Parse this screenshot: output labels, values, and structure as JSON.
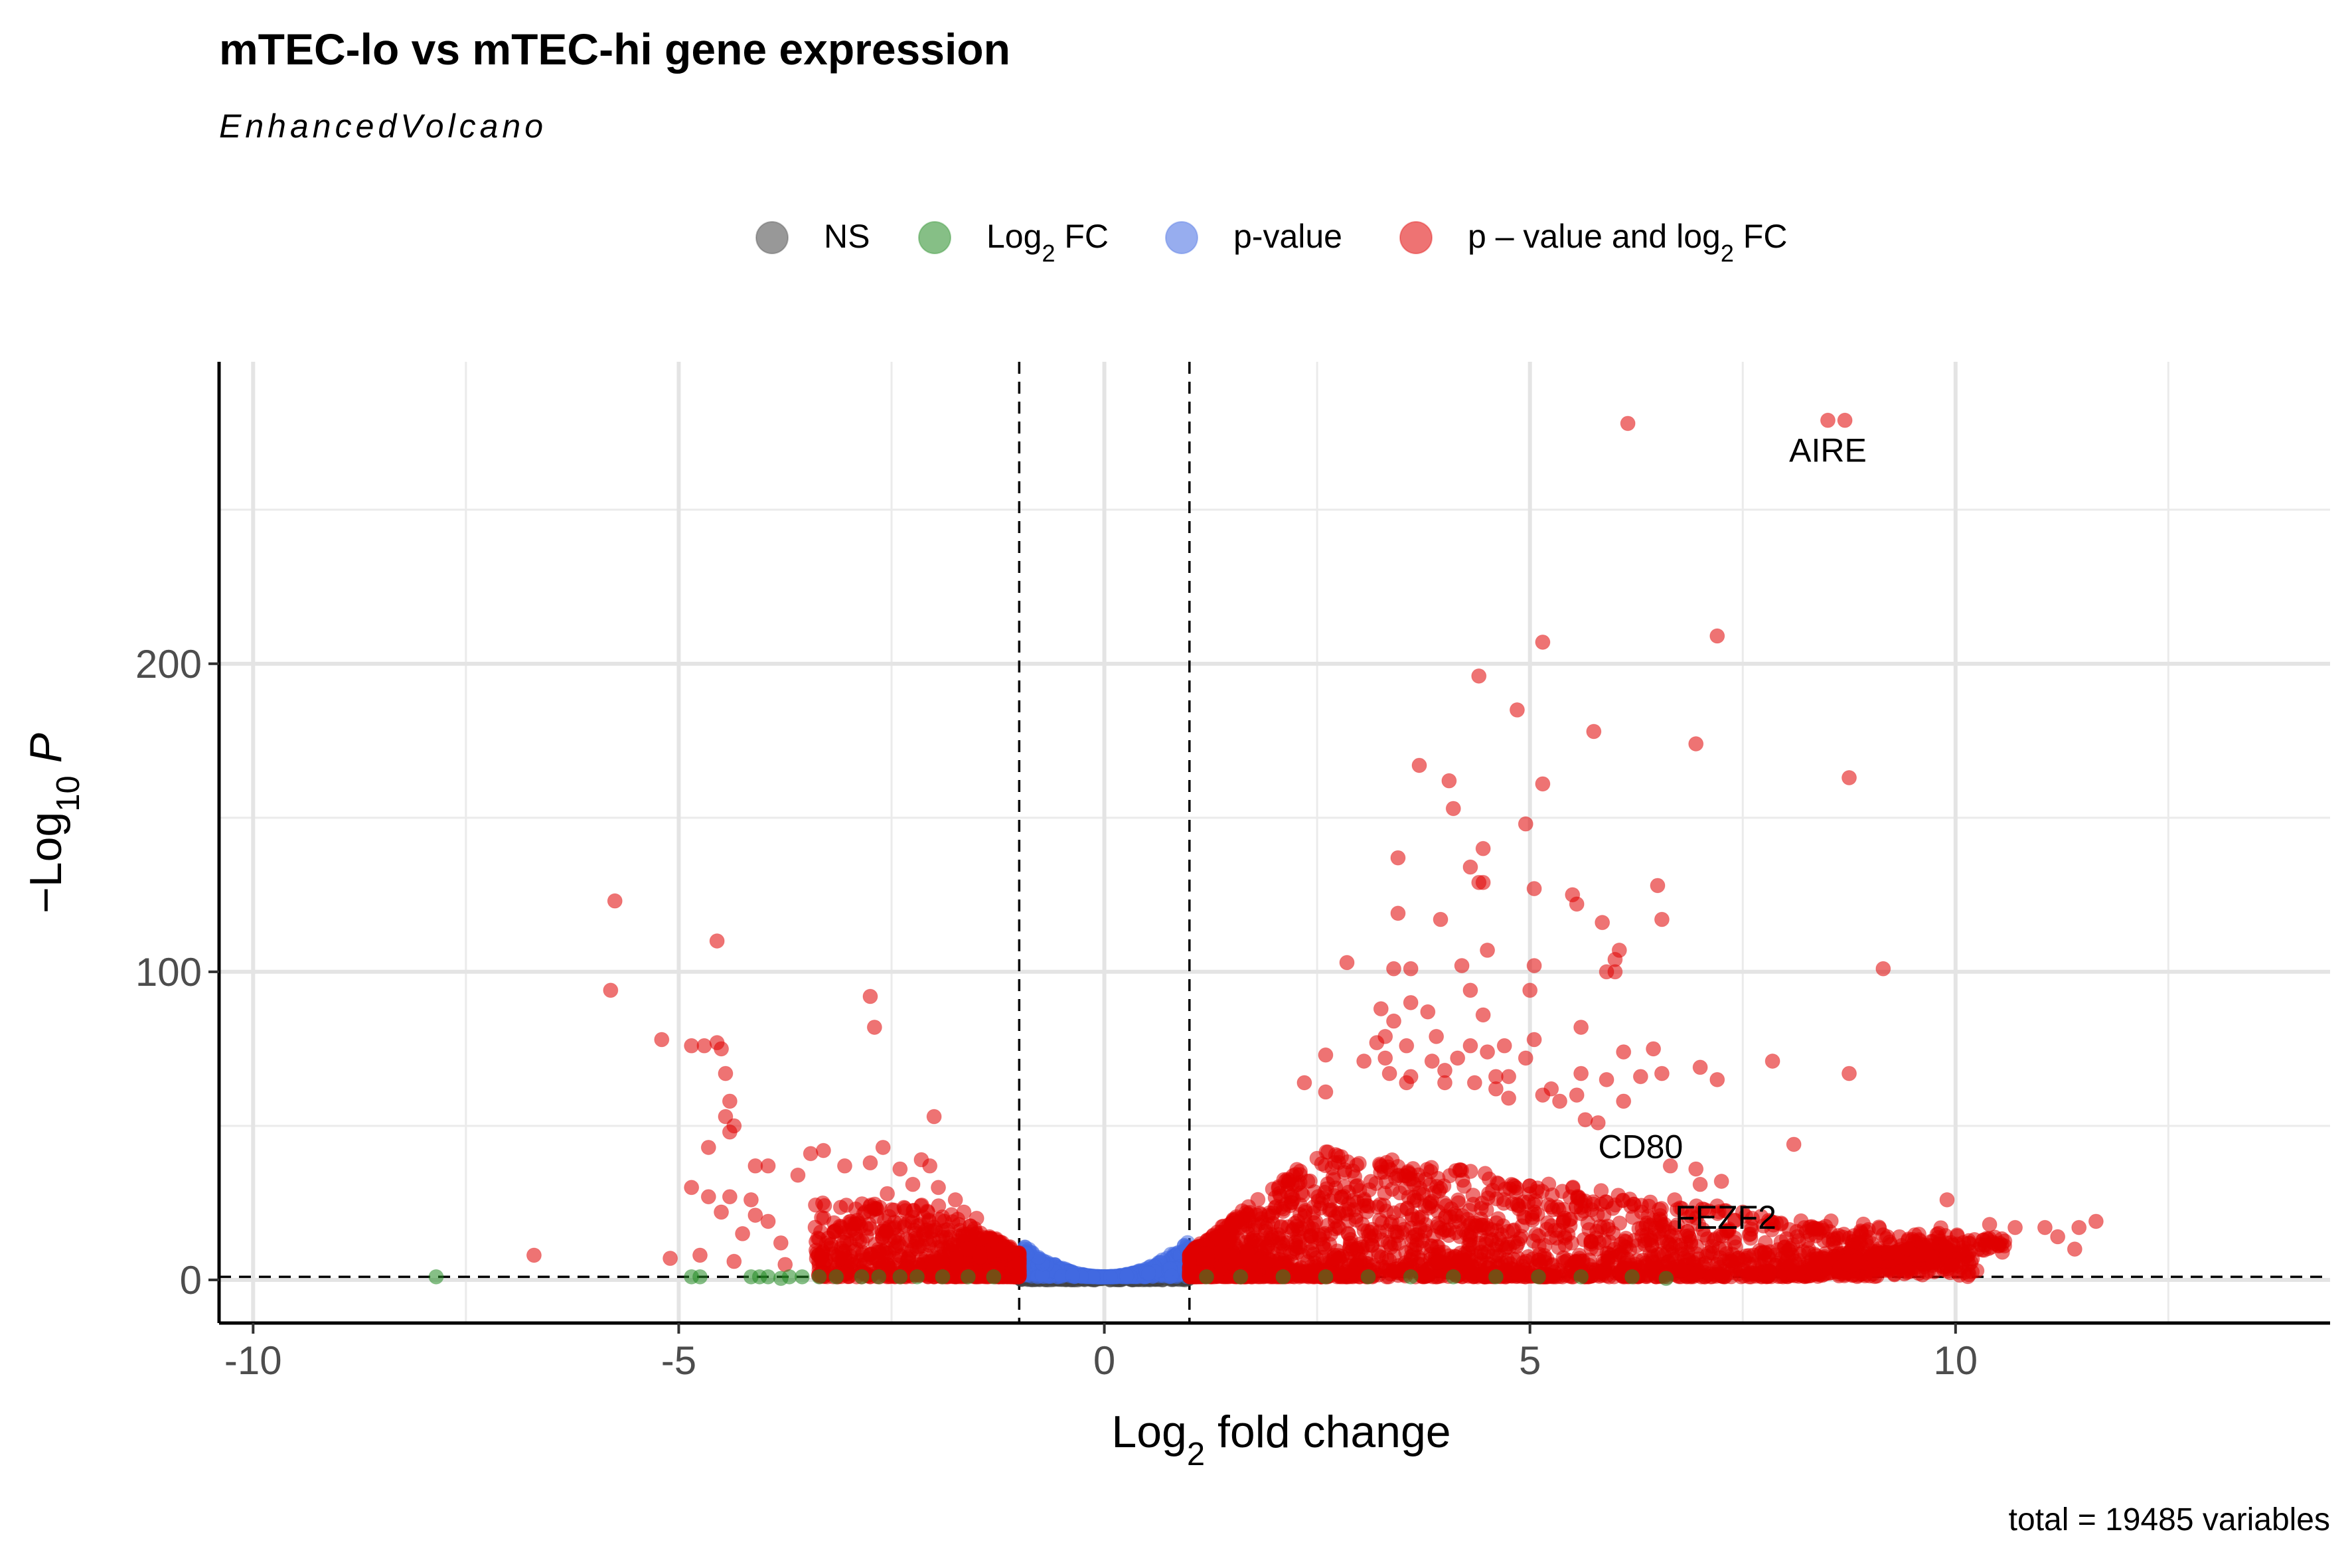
{
  "chart_data": {
    "type": "scatter",
    "title": "mTEC-lo vs mTEC-hi gene expression",
    "subtitle": "EnhancedVolcano",
    "xlabel": {
      "base": "Log",
      "sub": "2",
      "rest": " fold change"
    },
    "ylabel": {
      "prefix": "−Log",
      "sub": "10",
      "italic": "P"
    },
    "caption": "total = 19485 variables",
    "xlim": [
      -10.4,
      14.4
    ],
    "ylim": [
      -14,
      298
    ],
    "x_ticks": [
      -10,
      -5,
      0,
      5,
      10
    ],
    "x_tick_labels": [
      "-10",
      "-5",
      "0",
      "5",
      "10"
    ],
    "y_ticks": [
      0,
      100,
      200
    ],
    "y_tick_labels": [
      "0",
      "100",
      "200"
    ],
    "grid": true,
    "cutoffs": {
      "log2fc": [
        -1,
        1
      ],
      "neg_log10_p": 1
    },
    "legend": {
      "position": "top",
      "items": [
        {
          "key": "ns",
          "base": "NS",
          "sub": "",
          "rest": "",
          "color": "#444444"
        },
        {
          "key": "fc",
          "base": "Log",
          "sub": "2",
          "rest": " FC",
          "color": "#228B22"
        },
        {
          "key": "p",
          "base": "p-value",
          "sub": "",
          "rest": "",
          "color": "#4169E1"
        },
        {
          "key": "both",
          "base": "p – value and log",
          "sub": "2",
          "rest": " FC",
          "color": "#E00000"
        }
      ]
    },
    "series": [
      {
        "name": "p – value and log2 FC",
        "color": "#E00000",
        "points": [
          [
            6.15,
            278
          ],
          [
            8.5,
            279
          ],
          [
            8.7,
            279
          ],
          [
            7.2,
            209
          ],
          [
            5.15,
            207
          ],
          [
            4.4,
            196
          ],
          [
            4.85,
            185
          ],
          [
            5.75,
            178
          ],
          [
            6.95,
            174
          ],
          [
            8.75,
            163
          ],
          [
            3.7,
            167
          ],
          [
            4.05,
            162
          ],
          [
            5.15,
            161
          ],
          [
            4.1,
            153
          ],
          [
            4.95,
            148
          ],
          [
            4.45,
            140
          ],
          [
            3.45,
            137
          ],
          [
            4.3,
            134
          ],
          [
            4.45,
            129
          ],
          [
            4.4,
            129
          ],
          [
            5.05,
            127
          ],
          [
            6.5,
            128
          ],
          [
            5.5,
            125
          ],
          [
            5.55,
            122
          ],
          [
            6.55,
            117
          ],
          [
            3.45,
            119
          ],
          [
            3.95,
            117
          ],
          [
            5.85,
            116
          ],
          [
            4.5,
            107
          ],
          [
            6.05,
            107
          ],
          [
            6.0,
            104
          ],
          [
            2.85,
            103
          ],
          [
            3.4,
            101
          ],
          [
            3.6,
            101
          ],
          [
            4.2,
            102
          ],
          [
            5.05,
            102
          ],
          [
            5.9,
            100
          ],
          [
            6.0,
            100
          ],
          [
            9.15,
            101
          ],
          [
            4.3,
            94
          ],
          [
            5.0,
            94
          ],
          [
            3.6,
            90
          ],
          [
            3.25,
            88
          ],
          [
            3.8,
            87
          ],
          [
            4.45,
            86
          ],
          [
            3.4,
            84
          ],
          [
            5.6,
            82
          ],
          [
            3.3,
            79
          ],
          [
            3.2,
            77
          ],
          [
            3.9,
            79
          ],
          [
            3.55,
            76
          ],
          [
            4.3,
            76
          ],
          [
            4.7,
            76
          ],
          [
            5.05,
            78
          ],
          [
            6.1,
            74
          ],
          [
            6.45,
            75
          ],
          [
            4.5,
            74
          ],
          [
            4.15,
            72
          ],
          [
            3.85,
            71
          ],
          [
            2.6,
            73
          ],
          [
            3.05,
            71
          ],
          [
            3.3,
            72
          ],
          [
            4.95,
            72
          ],
          [
            4.0,
            68
          ],
          [
            7.85,
            71
          ],
          [
            3.35,
            67
          ],
          [
            3.55,
            64
          ],
          [
            3.6,
            66
          ],
          [
            4.6,
            66
          ],
          [
            4.75,
            66
          ],
          [
            6.55,
            67
          ],
          [
            7.0,
            69
          ],
          [
            8.75,
            67
          ],
          [
            5.6,
            67
          ],
          [
            5.9,
            65
          ],
          [
            6.3,
            66
          ],
          [
            7.2,
            65
          ],
          [
            4.0,
            64
          ],
          [
            4.35,
            64
          ],
          [
            4.6,
            62
          ],
          [
            5.25,
            62
          ],
          [
            2.35,
            64
          ],
          [
            2.6,
            61
          ],
          [
            4.75,
            59
          ],
          [
            5.15,
            60
          ],
          [
            5.35,
            58
          ],
          [
            5.55,
            60
          ],
          [
            6.1,
            58
          ],
          [
            5.65,
            52
          ],
          [
            5.8,
            51
          ],
          [
            8.1,
            44
          ],
          [
            6.95,
            36
          ],
          [
            6.65,
            37
          ],
          [
            7.0,
            31
          ],
          [
            7.25,
            32
          ],
          [
            6.7,
            26
          ],
          [
            7.2,
            24
          ],
          [
            7.5,
            22
          ],
          [
            9.9,
            26
          ],
          [
            10.4,
            18
          ],
          [
            10.7,
            17
          ],
          [
            11.05,
            17
          ],
          [
            11.2,
            14
          ],
          [
            11.45,
            17
          ],
          [
            11.65,
            19
          ],
          [
            11.4,
            10
          ],
          [
            10.55,
            9
          ],
          [
            10.25,
            3
          ],
          [
            8.7,
            6
          ],
          [
            9.55,
            8
          ],
          [
            -5.75,
            123
          ],
          [
            -5.8,
            94
          ],
          [
            -4.55,
            110
          ],
          [
            -5.2,
            78
          ],
          [
            -4.85,
            76
          ],
          [
            -4.7,
            76
          ],
          [
            -4.55,
            77
          ],
          [
            -4.5,
            75
          ],
          [
            -4.45,
            67
          ],
          [
            -4.4,
            58
          ],
          [
            -4.45,
            53
          ],
          [
            -4.35,
            50
          ],
          [
            -4.4,
            48
          ],
          [
            -4.65,
            43
          ],
          [
            -2.75,
            92
          ],
          [
            -2.7,
            82
          ],
          [
            -2.0,
            53
          ],
          [
            -3.3,
            42
          ],
          [
            -3.45,
            41
          ],
          [
            -2.6,
            43
          ],
          [
            -3.05,
            37
          ],
          [
            -2.75,
            38
          ],
          [
            -3.6,
            34
          ],
          [
            -3.95,
            37
          ],
          [
            -4.1,
            37
          ],
          [
            -4.85,
            30
          ],
          [
            -4.65,
            27
          ],
          [
            -4.4,
            27
          ],
          [
            -4.15,
            26
          ],
          [
            -4.5,
            22
          ],
          [
            -4.1,
            21
          ],
          [
            -3.95,
            19
          ],
          [
            -4.25,
            15
          ],
          [
            -3.8,
            12
          ],
          [
            -4.75,
            8
          ],
          [
            -5.1,
            7
          ],
          [
            -6.7,
            8
          ],
          [
            -4.35,
            6
          ],
          [
            -3.75,
            5
          ],
          [
            -2.15,
            39
          ],
          [
            -2.05,
            37
          ],
          [
            -2.25,
            31
          ],
          [
            -1.95,
            30
          ],
          [
            -2.4,
            36
          ],
          [
            -2.55,
            28
          ],
          [
            -1.75,
            26
          ],
          [
            -1.5,
            20
          ],
          [
            -1.65,
            22
          ],
          [
            -1.35,
            14
          ],
          [
            -1.6,
            10
          ]
        ]
      },
      {
        "name": "Log2 FC",
        "color": "#228B22",
        "points": [
          [
            -7.85,
            1
          ],
          [
            -4.85,
            1
          ],
          [
            -4.75,
            1
          ],
          [
            -4.15,
            1
          ],
          [
            -4.05,
            1
          ],
          [
            -3.95,
            1
          ],
          [
            -3.7,
            1
          ],
          [
            -3.55,
            1
          ],
          [
            -3.35,
            1
          ],
          [
            -3.15,
            1
          ],
          [
            -2.85,
            1
          ],
          [
            -2.65,
            1
          ],
          [
            -2.4,
            1
          ],
          [
            -2.2,
            1
          ],
          [
            -1.9,
            1
          ],
          [
            -1.6,
            1
          ],
          [
            -1.3,
            1
          ],
          [
            1.2,
            1
          ],
          [
            1.6,
            1
          ],
          [
            2.1,
            1
          ],
          [
            2.6,
            1
          ],
          [
            3.1,
            1
          ],
          [
            3.6,
            1
          ],
          [
            4.1,
            1
          ],
          [
            4.6,
            1
          ],
          [
            5.1,
            1
          ],
          [
            5.6,
            1
          ],
          [
            6.2,
            1
          ],
          [
            6.6,
            0.5
          ],
          [
            -3.8,
            0.5
          ]
        ]
      }
    ],
    "labels": [
      {
        "text": "AIRE",
        "x": 8.5,
        "y": 269
      },
      {
        "text": "CD80",
        "x": 6.3,
        "y": 43
      },
      {
        "text": "FEZF2",
        "x": 7.3,
        "y": 20
      }
    ]
  }
}
